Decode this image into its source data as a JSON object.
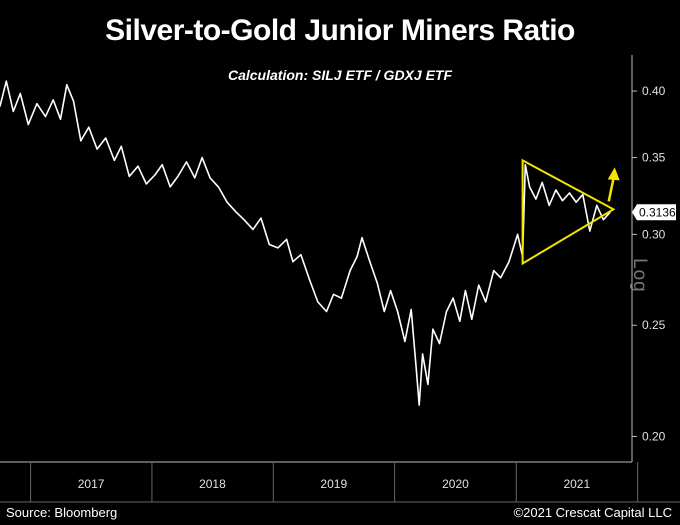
{
  "header": {
    "title": "Silver-to-Gold Junior Miners Ratio",
    "subtitle": "Calculation: SILJ ETF / GDXJ ETF"
  },
  "footer": {
    "source": "Source: Bloomberg",
    "copyright": "©2021 Crescat Capital LLC"
  },
  "axis": {
    "scale_label": "Log"
  },
  "colors": {
    "background": "#000000",
    "line": "#ffffff",
    "triangle": "#f2e600",
    "arrow": "#f2e600",
    "last_label_bg": "#ffffff"
  },
  "chart_data": {
    "type": "line",
    "title": "Silver-to-Gold Junior Miners Ratio",
    "subtitle": "Calculation: SILJ ETF / GDXJ ETF",
    "yscale": "log",
    "ylim": [
      0.19,
      0.43
    ],
    "xlim": [
      "2016-10-01",
      "2021-12-15"
    ],
    "y_ticks": [
      "0.40",
      "0.35",
      "0.30",
      "0.25",
      "0.20"
    ],
    "x_tick_labels": [
      "2017",
      "2018",
      "2019",
      "2020",
      "2021"
    ],
    "grid": false,
    "last_value_label": "0.3136",
    "series": [
      {
        "x": [
          "2016-10-01",
          "2016-10-20",
          "2016-11-10",
          "2016-12-01",
          "2016-12-25",
          "2017-01-20",
          "2017-02-15",
          "2017-03-10",
          "2017-04-01",
          "2017-04-20",
          "2017-05-10",
          "2017-06-01",
          "2017-06-25",
          "2017-07-20",
          "2017-08-15",
          "2017-09-10",
          "2017-10-01",
          "2017-10-25",
          "2017-11-20",
          "2017-12-15",
          "2018-01-10",
          "2018-02-01",
          "2018-02-25",
          "2018-03-20",
          "2018-04-15",
          "2018-05-10",
          "2018-06-01",
          "2018-06-25",
          "2018-07-20",
          "2018-08-15",
          "2018-09-10",
          "2018-10-05",
          "2018-11-01",
          "2018-11-25",
          "2018-12-20",
          "2019-01-15",
          "2019-02-10",
          "2019-03-01",
          "2019-03-25",
          "2019-04-20",
          "2019-05-15",
          "2019-06-10",
          "2019-07-01",
          "2019-07-25",
          "2019-08-20",
          "2019-09-10",
          "2019-09-25",
          "2019-10-15",
          "2019-11-10",
          "2019-12-01",
          "2019-12-20",
          "2020-01-10",
          "2020-02-01",
          "2020-02-20",
          "2020-03-05",
          "2020-03-15",
          "2020-03-25",
          "2020-04-10",
          "2020-04-25",
          "2020-05-15",
          "2020-06-05",
          "2020-06-25",
          "2020-07-15",
          "2020-08-01",
          "2020-08-20",
          "2020-09-10",
          "2020-10-01",
          "2020-10-25",
          "2020-11-15",
          "2020-12-10",
          "2021-01-05",
          "2021-01-20",
          "2021-01-28",
          "2021-02-10",
          "2021-03-01",
          "2021-03-20",
          "2021-04-10",
          "2021-04-30",
          "2021-05-20",
          "2021-06-10",
          "2021-06-30",
          "2021-07-20",
          "2021-08-10",
          "2021-08-31",
          "2021-09-20",
          "2021-10-10"
        ],
        "y": [
          0.388,
          0.408,
          0.384,
          0.398,
          0.374,
          0.39,
          0.38,
          0.393,
          0.378,
          0.405,
          0.392,
          0.362,
          0.372,
          0.356,
          0.364,
          0.348,
          0.358,
          0.337,
          0.344,
          0.332,
          0.338,
          0.345,
          0.33,
          0.337,
          0.347,
          0.336,
          0.35,
          0.336,
          0.33,
          0.32,
          0.314,
          0.309,
          0.303,
          0.31,
          0.294,
          0.292,
          0.297,
          0.284,
          0.288,
          0.274,
          0.262,
          0.257,
          0.266,
          0.264,
          0.279,
          0.287,
          0.298,
          0.286,
          0.272,
          0.257,
          0.268,
          0.257,
          0.242,
          0.258,
          0.231,
          0.213,
          0.236,
          0.222,
          0.248,
          0.241,
          0.257,
          0.264,
          0.252,
          0.268,
          0.253,
          0.271,
          0.262,
          0.279,
          0.275,
          0.284,
          0.3,
          0.287,
          0.345,
          0.33,
          0.322,
          0.333,
          0.318,
          0.328,
          0.321,
          0.326,
          0.32,
          0.325,
          0.302,
          0.318,
          0.309,
          0.3136
        ]
      }
    ],
    "annotations": [
      {
        "type": "triangle",
        "points": [
          [
            "2021-01-20",
            0.348
          ],
          [
            "2021-10-20",
            0.3155
          ],
          [
            "2021-01-20",
            0.283
          ]
        ]
      },
      {
        "type": "arrow",
        "direction": "up",
        "at": [
          "2021-10-15",
          0.335
        ]
      }
    ]
  }
}
